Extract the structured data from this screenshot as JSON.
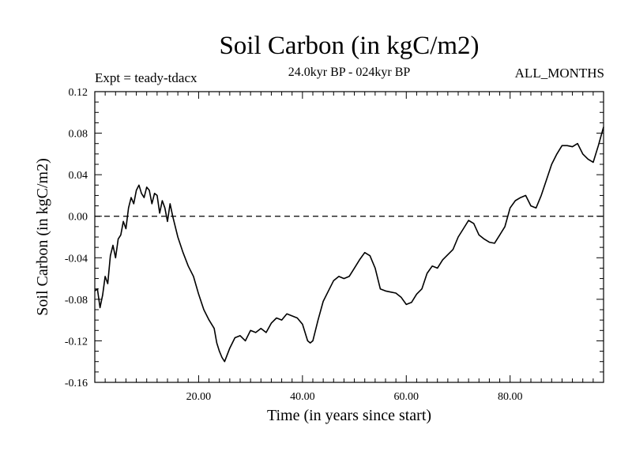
{
  "chart_data": {
    "type": "line",
    "title": "Soil Carbon (in kgC/m2)",
    "subtitle": "24.0kyr BP - 024kyr BP",
    "expt_label": "Expt = teady-tdacx",
    "period_label": "ALL_MONTHS",
    "xlabel": "Time (in years since start)",
    "ylabel": "Soil Carbon (in kgC/m2)",
    "xlim": [
      0.0,
      98.0
    ],
    "ylim": [
      -0.16,
      0.12
    ],
    "xticks": [
      20,
      40,
      60,
      80
    ],
    "xtick_labels": [
      "20.00",
      "40.00",
      "60.00",
      "80.00"
    ],
    "yticks": [
      -0.16,
      -0.12,
      -0.08,
      -0.04,
      0.0,
      0.04,
      0.08,
      0.12
    ],
    "ytick_labels": [
      "-0.16",
      "-0.12",
      "-0.08",
      "-0.04",
      "0.00",
      "0.04",
      "0.08",
      "0.12"
    ],
    "reference_line": {
      "y": 0.0,
      "style": "dashed"
    },
    "grid": false,
    "series": [
      {
        "x": [
          0.0,
          0.5,
          1.0,
          1.5,
          2.0,
          2.5,
          3.0,
          3.5,
          4.0,
          4.5,
          5.0,
          5.5,
          6.0,
          6.5,
          7.0,
          7.5,
          8.0,
          8.5,
          9.0,
          9.5,
          10.0,
          10.5,
          11.0,
          11.5,
          12.0,
          12.5,
          13.0,
          13.5,
          14.0,
          14.5,
          15.0,
          16.0,
          17.0,
          18.0,
          19.0,
          20.0,
          21.0,
          22.0,
          23.0,
          23.5,
          24.0,
          24.5,
          25.0,
          26.0,
          27.0,
          28.0,
          29.0,
          30.0,
          31.0,
          32.0,
          33.0,
          34.0,
          35.0,
          36.0,
          37.0,
          38.0,
          39.0,
          40.0,
          41.0,
          41.5,
          42.0,
          43.0,
          44.0,
          45.0,
          46.0,
          47.0,
          48.0,
          49.0,
          50.0,
          51.0,
          52.0,
          53.0,
          54.0,
          55.0,
          56.0,
          57.0,
          58.0,
          59.0,
          60.0,
          61.0,
          62.0,
          63.0,
          64.0,
          65.0,
          66.0,
          67.0,
          68.0,
          69.0,
          70.0,
          71.0,
          72.0,
          73.0,
          74.0,
          75.0,
          76.0,
          77.0,
          78.0,
          79.0,
          80.0,
          81.0,
          82.0,
          83.0,
          84.0,
          85.0,
          86.0,
          87.0,
          88.0,
          89.0,
          90.0,
          91.0,
          92.0,
          93.0,
          94.0,
          95.0,
          96.0,
          97.0,
          98.0
        ],
        "y": [
          -0.072,
          -0.07,
          -0.088,
          -0.076,
          -0.058,
          -0.065,
          -0.038,
          -0.028,
          -0.04,
          -0.022,
          -0.018,
          -0.005,
          -0.012,
          0.008,
          0.018,
          0.012,
          0.025,
          0.03,
          0.022,
          0.018,
          0.028,
          0.025,
          0.012,
          0.022,
          0.02,
          0.003,
          0.015,
          0.008,
          -0.005,
          0.012,
          0.0,
          -0.02,
          -0.035,
          -0.048,
          -0.058,
          -0.075,
          -0.09,
          -0.1,
          -0.108,
          -0.122,
          -0.13,
          -0.136,
          -0.14,
          -0.127,
          -0.117,
          -0.115,
          -0.12,
          -0.11,
          -0.112,
          -0.108,
          -0.112,
          -0.103,
          -0.098,
          -0.1,
          -0.094,
          -0.096,
          -0.098,
          -0.104,
          -0.12,
          -0.122,
          -0.12,
          -0.1,
          -0.082,
          -0.072,
          -0.062,
          -0.058,
          -0.06,
          -0.058,
          -0.05,
          -0.042,
          -0.035,
          -0.038,
          -0.05,
          -0.07,
          -0.072,
          -0.073,
          -0.074,
          -0.078,
          -0.085,
          -0.083,
          -0.075,
          -0.07,
          -0.055,
          -0.048,
          -0.05,
          -0.042,
          -0.037,
          -0.032,
          -0.02,
          -0.012,
          -0.004,
          -0.007,
          -0.018,
          -0.022,
          -0.025,
          -0.026,
          -0.018,
          -0.01,
          0.008,
          0.015,
          0.018,
          0.02,
          0.01,
          0.008,
          0.02,
          0.035,
          0.05,
          0.06,
          0.068,
          0.068,
          0.067,
          0.07,
          0.06,
          0.055,
          0.052,
          0.068,
          0.086
        ]
      }
    ]
  }
}
